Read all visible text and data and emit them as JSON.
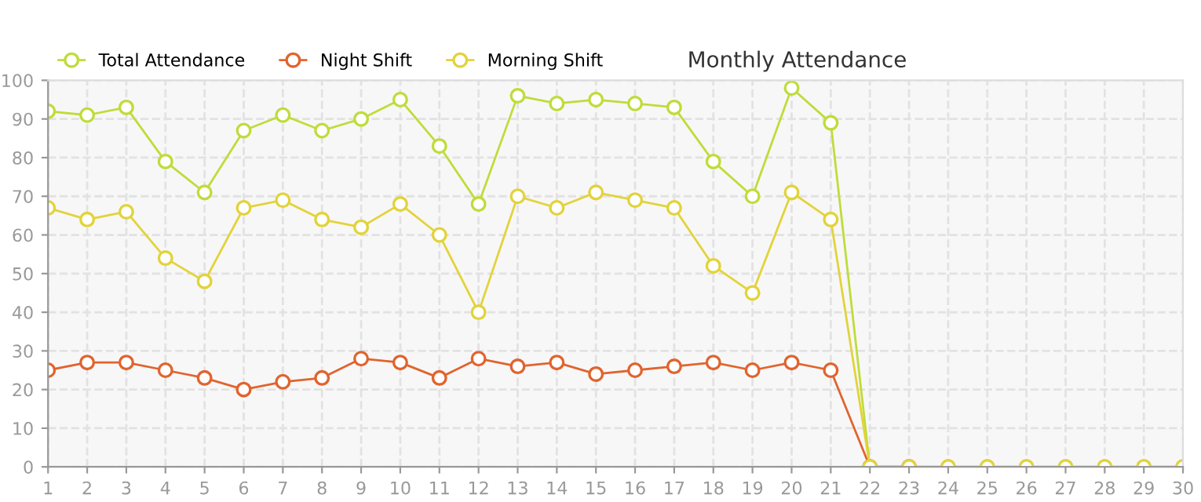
{
  "chart_data": {
    "type": "line",
    "title": "Monthly Attendance",
    "x": [
      1,
      2,
      3,
      4,
      5,
      6,
      7,
      8,
      9,
      10,
      11,
      12,
      13,
      14,
      15,
      16,
      17,
      18,
      19,
      20,
      21,
      22,
      23,
      24,
      25,
      26,
      27,
      28,
      29,
      30
    ],
    "series": [
      {
        "name": "Total Attendance",
        "color": "#bfdc3a",
        "values": [
          92,
          91,
          93,
          79,
          71,
          87,
          91,
          87,
          90,
          95,
          83,
          68,
          96,
          94,
          95,
          94,
          93,
          79,
          70,
          98,
          89,
          0,
          0,
          0,
          0,
          0,
          0,
          0,
          0,
          0
        ]
      },
      {
        "name": "Night Shift",
        "color": "#e0642e",
        "values": [
          25,
          27,
          27,
          25,
          23,
          20,
          22,
          23,
          28,
          27,
          23,
          28,
          26,
          27,
          24,
          25,
          26,
          27,
          25,
          27,
          25,
          0,
          0,
          null,
          null,
          null,
          null,
          null,
          null,
          null
        ]
      },
      {
        "name": "Morning Shift",
        "color": "#e2d33a",
        "values": [
          67,
          64,
          66,
          54,
          48,
          67,
          69,
          64,
          62,
          68,
          60,
          40,
          70,
          67,
          71,
          69,
          67,
          52,
          45,
          71,
          64,
          0,
          0,
          0,
          0,
          0,
          0,
          0,
          0,
          0
        ]
      }
    ],
    "xlim": [
      1,
      30
    ],
    "xticks": [
      1,
      2,
      3,
      4,
      5,
      6,
      7,
      8,
      9,
      10,
      11,
      12,
      13,
      14,
      15,
      16,
      17,
      18,
      19,
      20,
      21,
      22,
      23,
      24,
      25,
      26,
      27,
      28,
      29,
      30
    ],
    "ylim": [
      0,
      100
    ],
    "yticks": [
      0,
      10,
      20,
      30,
      40,
      50,
      60,
      70,
      80,
      90,
      100
    ],
    "grid": true,
    "legend": "top left",
    "marker": "circle",
    "line_style": "solid"
  }
}
